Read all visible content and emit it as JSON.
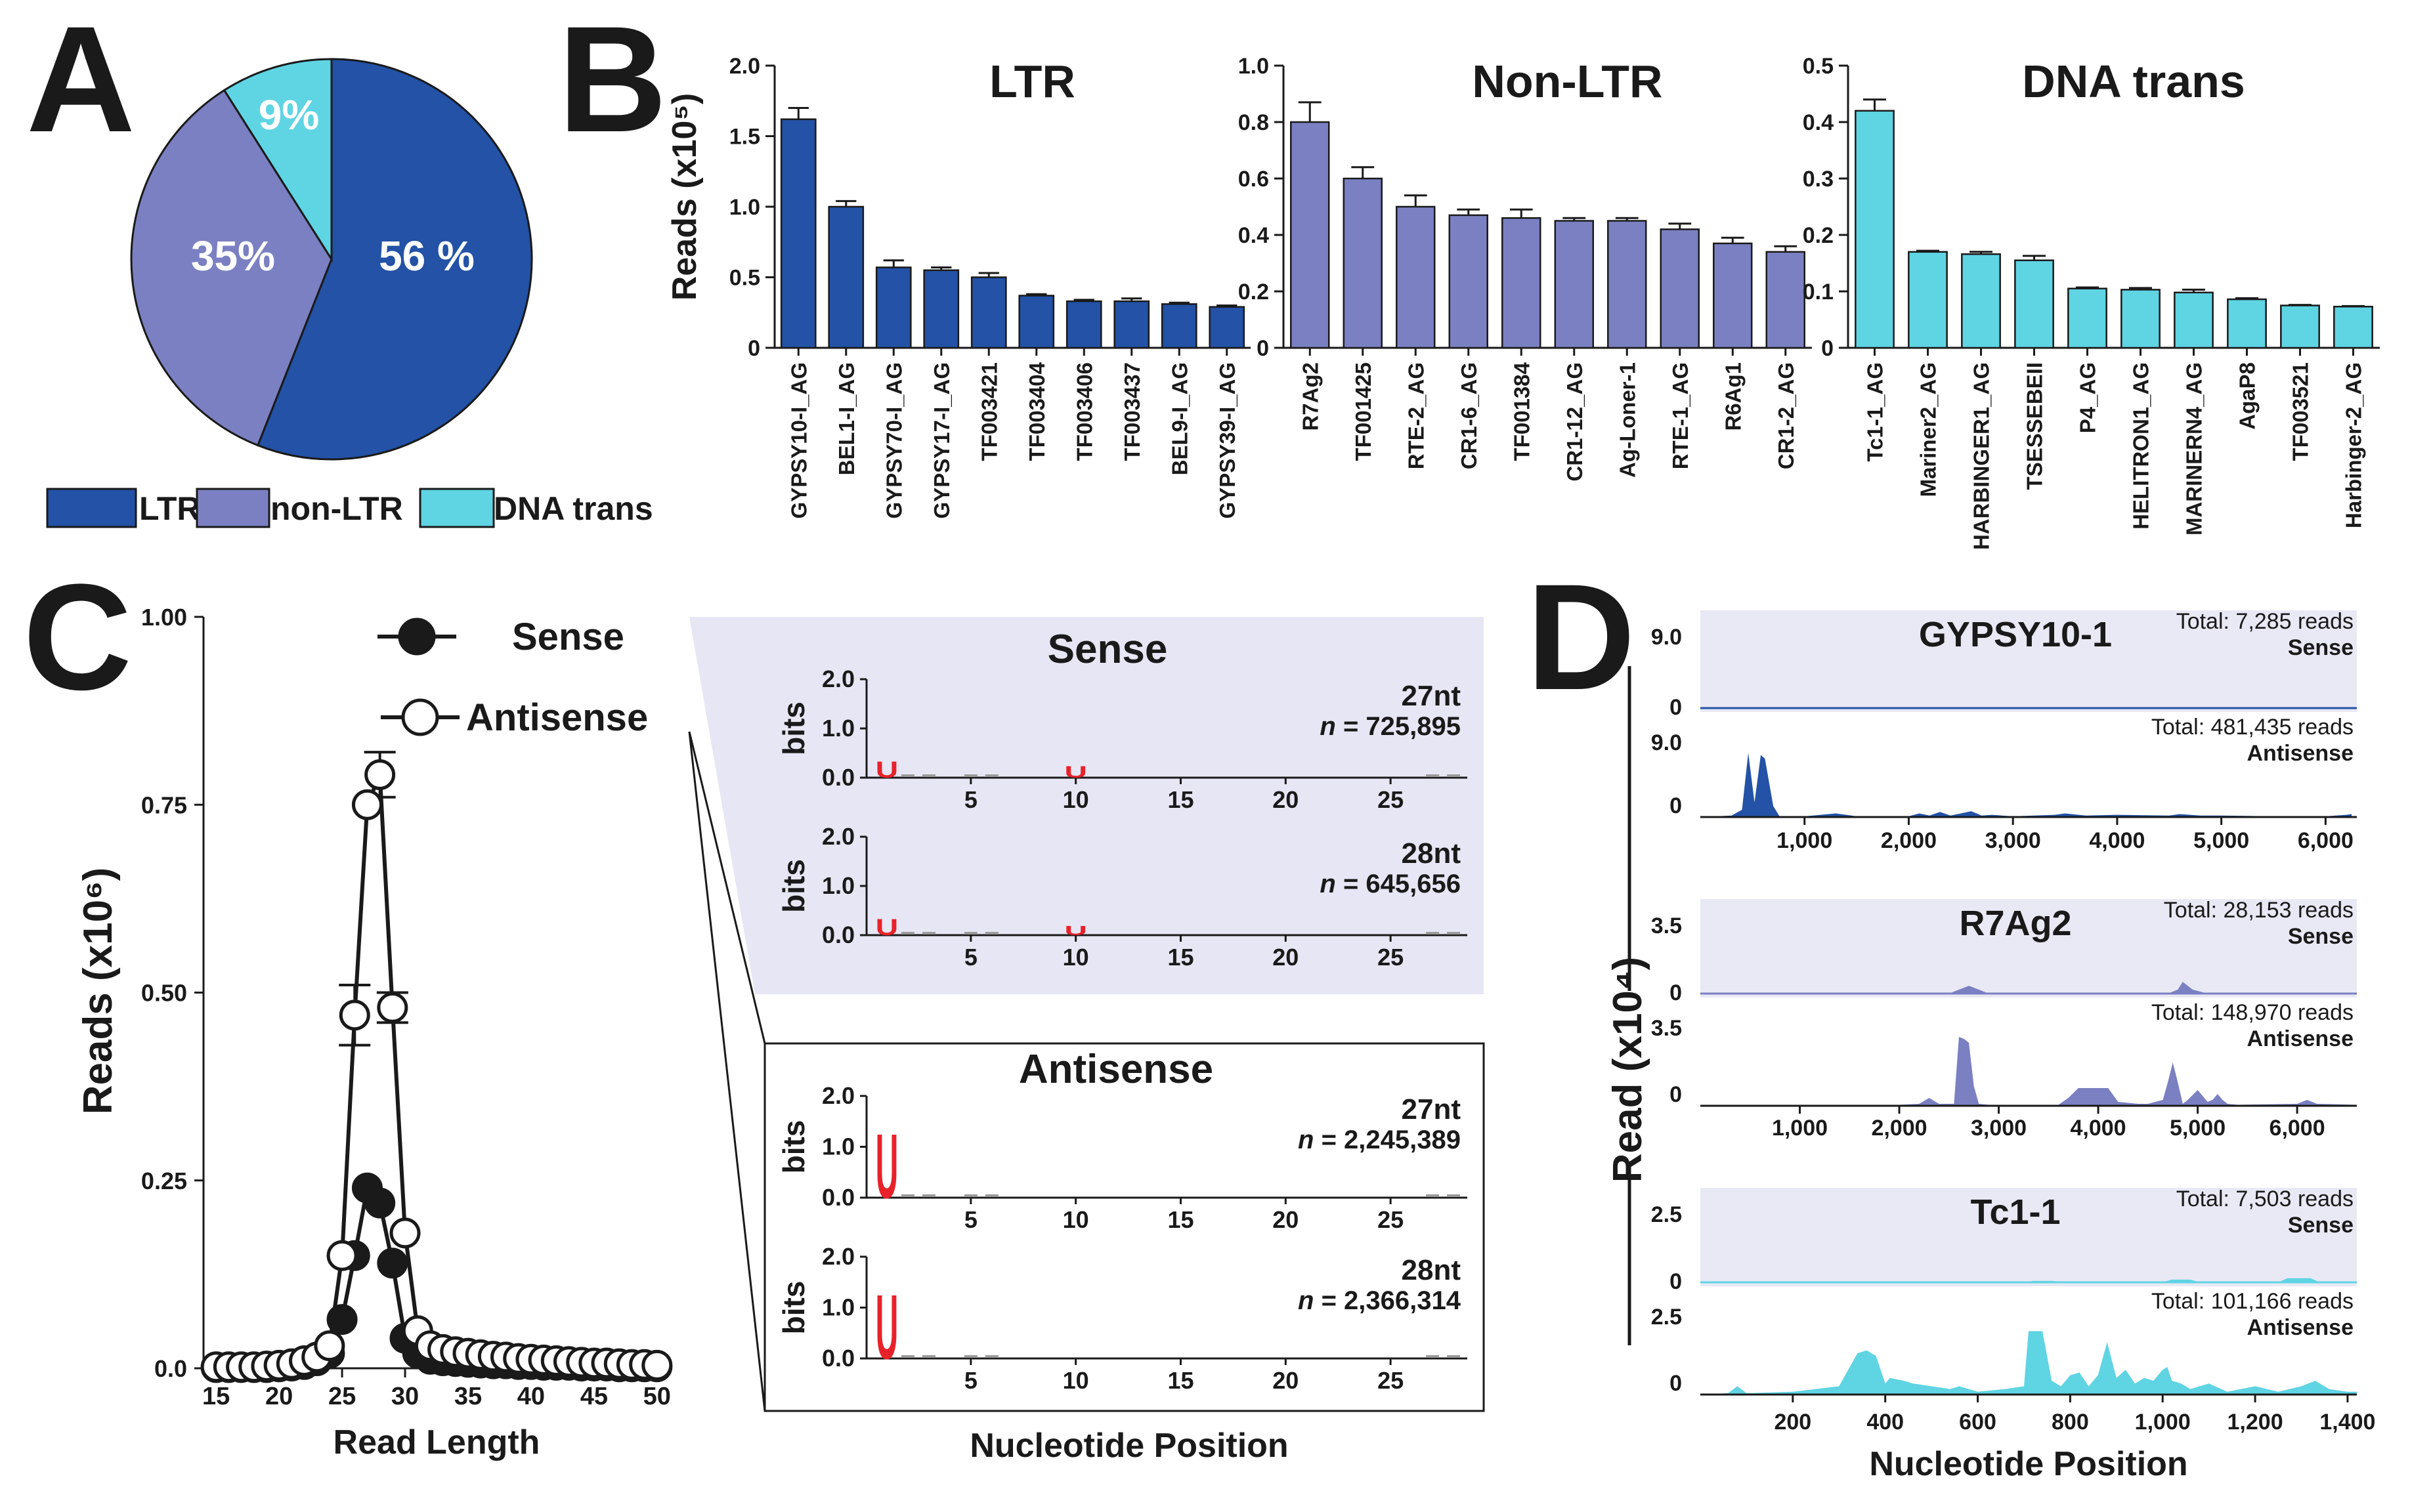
{
  "panels": {
    "A": {
      "letter": "A",
      "chart_data": {
        "type": "pie",
        "labels": [
          "LTR",
          "non-LTR",
          "DNA trans"
        ],
        "values": [
          56,
          35,
          9
        ],
        "value_labels": [
          "56 %",
          "35%",
          "9%"
        ],
        "colors": [
          "#2352a6",
          "#7b80c2",
          "#5fd4e3"
        ]
      }
    },
    "B": {
      "letter": "B",
      "ylabel": "Reads (x10⁵)",
      "charts": [
        {
          "type": "bar",
          "title": "LTR",
          "color": "#2352a6",
          "categories": [
            "GYPSY10-I_AG",
            "BEL1-I_AG",
            "GYPSY70-I_AG",
            "GYPSY17-I_AG",
            "TF003421",
            "TF003404",
            "TF003406",
            "TF003437",
            "BEL9-I_AG",
            "GYPSY39-I_AG"
          ],
          "values": [
            1.62,
            1.0,
            0.57,
            0.55,
            0.5,
            0.37,
            0.33,
            0.33,
            0.31,
            0.29
          ],
          "errors": [
            0.08,
            0.04,
            0.05,
            0.02,
            0.03,
            0.01,
            0.01,
            0.02,
            0.01,
            0.01
          ],
          "ylim": [
            0,
            2.0
          ],
          "yticks": [
            0,
            0.5,
            1.0,
            1.5,
            2.0
          ],
          "ytick_labels": [
            "0",
            "0.5",
            "1.0",
            "1.5",
            "2.0"
          ]
        },
        {
          "type": "bar",
          "title": "Non-LTR",
          "color": "#7b80c2",
          "categories": [
            "R7Ag2",
            "TF001425",
            "RTE-2_AG",
            "CR1-6_AG",
            "TF001384",
            "CR1-12_AG",
            "Ag-Loner-1",
            "RTE-1_AG",
            "R6Ag1",
            "CR1-2_AG"
          ],
          "values": [
            0.8,
            0.6,
            0.5,
            0.47,
            0.46,
            0.45,
            0.45,
            0.42,
            0.37,
            0.34
          ],
          "errors": [
            0.07,
            0.04,
            0.04,
            0.02,
            0.03,
            0.01,
            0.01,
            0.02,
            0.02,
            0.02
          ],
          "ylim": [
            0,
            1.0
          ],
          "yticks": [
            0,
            0.2,
            0.4,
            0.6,
            0.8,
            1.0
          ],
          "ytick_labels": [
            "0",
            "0.2",
            "0.4",
            "0.6",
            "0.8",
            "1.0"
          ]
        },
        {
          "type": "bar",
          "title": "DNA trans",
          "color": "#5fd4e3",
          "categories": [
            "Tc1-1_AG",
            "Mariner2_AG",
            "HARBINGER1_AG",
            "TSESSEBEII",
            "P4_AG",
            "HELITRON1_AG",
            "MARINERN4_AG",
            "AgaP8",
            "TF003521",
            "Harbinger-2_AG"
          ],
          "values": [
            0.42,
            0.17,
            0.166,
            0.155,
            0.105,
            0.103,
            0.098,
            0.086,
            0.075,
            0.073
          ],
          "errors": [
            0.02,
            0.002,
            0.004,
            0.008,
            0.002,
            0.003,
            0.005,
            0.002,
            0.001,
            0.001
          ],
          "ylim": [
            0,
            0.5
          ],
          "yticks": [
            0,
            0.1,
            0.2,
            0.3,
            0.4,
            0.5
          ],
          "ytick_labels": [
            "0",
            "0.1",
            "0.2",
            "0.3",
            "0.4",
            "0.5"
          ]
        }
      ]
    },
    "C": {
      "letter": "C",
      "chart_data": {
        "type": "line",
        "x": [
          15,
          16,
          17,
          18,
          19,
          20,
          21,
          22,
          23,
          24,
          25,
          26,
          27,
          28,
          29,
          30,
          31,
          32,
          33,
          34,
          35,
          36,
          37,
          38,
          39,
          40,
          41,
          42,
          43,
          44,
          45,
          46,
          47,
          48,
          49,
          50
        ],
        "series": [
          {
            "name": "Sense",
            "marker": "filled",
            "values": [
              0.001,
              0.001,
              0.001,
              0.001,
              0.001,
              0.002,
              0.003,
              0.005,
              0.01,
              0.02,
              0.065,
              0.15,
              0.24,
              0.22,
              0.14,
              0.04,
              0.02,
              0.012,
              0.01,
              0.009,
              0.008,
              0.007,
              0.006,
              0.006,
              0.005,
              0.005,
              0.004,
              0.004,
              0.004,
              0.003,
              0.003,
              0.003,
              0.002,
              0.002,
              0.002,
              0.002
            ]
          },
          {
            "name": "Antisense",
            "marker": "open",
            "values": [
              0.002,
              0.002,
              0.002,
              0.002,
              0.003,
              0.004,
              0.006,
              0.01,
              0.015,
              0.03,
              0.15,
              0.47,
              0.75,
              0.79,
              0.48,
              0.18,
              0.05,
              0.03,
              0.025,
              0.022,
              0.02,
              0.018,
              0.016,
              0.015,
              0.013,
              0.012,
              0.011,
              0.01,
              0.009,
              0.008,
              0.007,
              0.007,
              0.006,
              0.005,
              0.005,
              0.004
            ]
          }
        ],
        "errors_at": {
          "26": 0.04,
          "28": 0.03,
          "29": 0.02
        },
        "xlabel": "Read Length",
        "ylabel": "Reads (x10⁶)",
        "xlim": [
          14,
          51
        ],
        "xticks": [
          15,
          20,
          25,
          30,
          35,
          40,
          45,
          50
        ],
        "ylim": [
          0,
          1.0
        ],
        "yticks": [
          0,
          0.25,
          0.5,
          0.75,
          1.0
        ],
        "ytick_labels": [
          "0.0",
          "0.25",
          "0.50",
          "0.75",
          "1.00"
        ]
      },
      "logos": {
        "xlabel": "Nucleotide Position",
        "ylabel": "bits",
        "yticks": [
          "0.0",
          "1.0",
          "2.0"
        ],
        "xticks": [
          "5",
          "10",
          "15",
          "20",
          "25"
        ],
        "sense": {
          "title": "Sense",
          "rows": [
            {
              "nt": "27nt",
              "n_label": "n",
              "n_value": "= 725,895",
              "u1_bits": 0.35,
              "u10_bits": 0.25
            },
            {
              "nt": "28nt",
              "n_label": "n",
              "n_value": "= 645,656",
              "u1_bits": 0.35,
              "u10_bits": 0.2
            }
          ]
        },
        "antisense": {
          "title": "Antisense",
          "rows": [
            {
              "nt": "27nt",
              "n_label": "n",
              "n_value": "= 2,245,389",
              "u1_bits": 1.35
            },
            {
              "nt": "28nt",
              "n_label": "n",
              "n_value": "= 2,366,314",
              "u1_bits": 1.35
            }
          ]
        },
        "base_letter": "U"
      }
    },
    "D": {
      "letter": "D",
      "ylabel": "Read (x10⁴)",
      "xlabel": "Nucleotide Position",
      "tracks": [
        {
          "name": "GYPSY10-1",
          "color": "#2352a6",
          "ymax_label": "9.0",
          "zero_label": "0",
          "sense": {
            "total": "Total: 7,285 reads",
            "strand": "Sense",
            "x": [
              0,
              400,
              500,
              3500,
              5000,
              6300
            ],
            "y": [
              0,
              0.12,
              0.12,
              0.1,
              0.05,
              0.02
            ]
          },
          "antisense": {
            "total": "Total: 481,435 reads",
            "strand": "Antisense",
            "ymax_label": "9.0",
            "zero_label": "0",
            "x": [
              0,
              300,
              400,
              460,
              520,
              580,
              620,
              700,
              760,
              830,
              900,
              1000,
              1300,
              1400,
              1500,
              2000,
              2100,
              2200,
              2300,
              2400,
              2500,
              2600,
              2700,
              2800,
              3000,
              3400,
              3500,
              3700,
              4000,
              4500,
              4600,
              4800,
              5000,
              5500,
              6000,
              6200,
              6250
            ],
            "y": [
              0,
              0.2,
              1.0,
              8.8,
              2.0,
              8.5,
              8.0,
              1.5,
              0.1,
              0.05,
              0.1,
              0.1,
              0.5,
              0.3,
              0.1,
              0.1,
              0.5,
              0.2,
              0.7,
              0.2,
              0.5,
              0.8,
              0.2,
              0.3,
              0.1,
              0.3,
              0.5,
              0.2,
              0.3,
              0.2,
              0.4,
              0.2,
              0.2,
              0.1,
              0.1,
              0.3,
              0.4
            ]
          },
          "xmax": 6300,
          "xticks": [
            1000,
            2000,
            3000,
            4000,
            5000,
            6000
          ],
          "xtick_labels": [
            "1,000",
            "2,000",
            "3,000",
            "4,000",
            "5,000",
            "6,000"
          ]
        },
        {
          "name": "R7Ag2",
          "color": "#7b80c2",
          "ymax_label": "3.5",
          "zero_label": "0",
          "sense": {
            "total": "Total: 28,153 reads",
            "strand": "Sense",
            "x": [
              0,
              2500,
              2600,
              2700,
              2800,
              2900,
              4700,
              4800,
              4850,
              4950,
              5100,
              6600
            ],
            "y": [
              0,
              0,
              0.2,
              0.4,
              0.2,
              0,
              0,
              0.2,
              0.6,
              0.2,
              0,
              0
            ]
          },
          "antisense": {
            "total": "Total: 148,970 reads",
            "strand": "Antisense",
            "ymax_label": "3.5",
            "zero_label": "0",
            "x": [
              0,
              1000,
              2000,
              2200,
              2300,
              2400,
              2550,
              2600,
              2650,
              2700,
              2750,
              2800,
              2900,
              3000,
              3600,
              3700,
              3800,
              3900,
              4000,
              4100,
              4200,
              4400,
              4500,
              4650,
              4700,
              4750,
              4800,
              4850,
              4900,
              5000,
              5100,
              5150,
              5200,
              5250,
              5300,
              5400,
              6000,
              6100,
              6200,
              6600
            ],
            "y": [
              0,
              0.05,
              0.05,
              0.1,
              0.4,
              0.1,
              0.1,
              3.5,
              3.4,
              3.2,
              1.0,
              0.1,
              0.05,
              0.05,
              0.05,
              0.4,
              0.9,
              0.9,
              0.9,
              0.9,
              0.2,
              0.1,
              0.1,
              0.3,
              1.2,
              2.2,
              1.2,
              0.1,
              0.3,
              0.8,
              0.2,
              0.3,
              0.6,
              0.3,
              0.1,
              0.05,
              0.1,
              0.3,
              0.1,
              0.05
            ]
          },
          "xmax": 6600,
          "xticks": [
            1000,
            2000,
            3000,
            4000,
            5000,
            6000
          ],
          "xtick_labels": [
            "1,000",
            "2,000",
            "3,000",
            "4,000",
            "5,000",
            "6,000"
          ]
        },
        {
          "name": "Tc1-1",
          "color": "#5fd4e3",
          "ymax_label": "2.5",
          "zero_label": "0",
          "sense": {
            "total": "Total: 7,503 reads",
            "strand": "Sense",
            "x": [
              0,
              700,
              720,
              760,
              800,
              1000,
              1020,
              1060,
              1080,
              1250,
              1270,
              1320,
              1340,
              1420
            ],
            "y": [
              0,
              0,
              0.05,
              0.05,
              0,
              0,
              0.1,
              0.1,
              0,
              0,
              0.15,
              0.15,
              0,
              0
            ]
          },
          "antisense": {
            "total": "Total: 101,166 reads",
            "strand": "Antisense",
            "ymax_label": "2.5",
            "zero_label": "0",
            "x": [
              0,
              60,
              80,
              100,
              200,
              300,
              340,
              360,
              380,
              400,
              410,
              440,
              460,
              500,
              540,
              560,
              600,
              660,
              700,
              710,
              720,
              740,
              760,
              780,
              800,
              820,
              840,
              860,
              880,
              900,
              920,
              940,
              960,
              980,
              1000,
              1010,
              1020,
              1040,
              1060,
              1080,
              1100,
              1140,
              1200,
              1250,
              1300,
              1330,
              1360,
              1400,
              1420
            ],
            "y": [
              0,
              0.05,
              0.3,
              0.05,
              0.1,
              0.3,
              1.5,
              1.6,
              1.4,
              0.4,
              0.6,
              0.5,
              0.4,
              0.3,
              0.2,
              0.3,
              0.1,
              0.2,
              0.3,
              2.3,
              2.3,
              2.3,
              0.5,
              0.3,
              0.7,
              0.8,
              0.3,
              0.7,
              1.9,
              0.6,
              0.9,
              0.4,
              0.6,
              0.5,
              0.9,
              1.0,
              0.5,
              0.4,
              0.2,
              0.3,
              0.4,
              0.1,
              0.3,
              0.1,
              0.3,
              0.5,
              0.2,
              0.1,
              0.1
            ]
          },
          "xmax": 1420,
          "xticks": [
            200,
            400,
            600,
            800,
            1000,
            1200,
            1400
          ],
          "xtick_labels": [
            "200",
            "400",
            "600",
            "800",
            "1,000",
            "1,200",
            "1,400"
          ]
        }
      ]
    }
  },
  "legend_A": [
    "LTR",
    "non-LTR",
    "DNA trans"
  ]
}
